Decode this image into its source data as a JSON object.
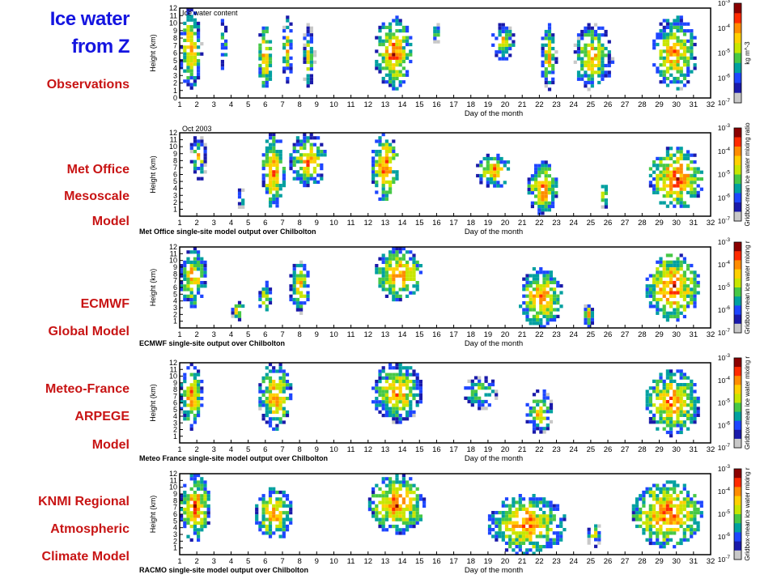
{
  "header": {
    "title_line1": "Ice water",
    "title_line2": "from Z"
  },
  "labels": {
    "obs": "Observations",
    "metoffice": [
      "Met Office",
      "Mesoscale",
      "Model"
    ],
    "ecmwf": [
      "ECMWF",
      "Global Model"
    ],
    "meteofrance": [
      "Meteo-France",
      "ARPEGE",
      "Model"
    ],
    "knmi": [
      "KNMI Regional",
      "Atmospheric",
      "Climate Model"
    ]
  },
  "colors": {
    "title": "#1515e0",
    "labels": "#c81414"
  },
  "colorbar": {
    "ticks": [
      "10^-3",
      "10^-4",
      "10^-5",
      "10^-6",
      "10^-7"
    ],
    "colors": [
      "#8b0000",
      "#ff2a00",
      "#ff8c00",
      "#ffd000",
      "#c8e600",
      "#46c846",
      "#00a0a0",
      "#1e46ff",
      "#1a1aaa",
      "#c8c8c8"
    ]
  },
  "chart_data": [
    {
      "type": "heatmap",
      "panel_title": "Ice water content",
      "title": "",
      "ylabel": "Height (km)",
      "xlabel": "Day of the month",
      "ylim": [
        0,
        12
      ],
      "xlim": [
        1,
        32
      ],
      "yticks": [
        "0",
        "1",
        "2",
        "3",
        "4",
        "5",
        "6",
        "7",
        "8",
        "9",
        "10",
        "11",
        "12"
      ],
      "xticks": [
        "1",
        "2",
        "3",
        "4",
        "5",
        "6",
        "7",
        "8",
        "9",
        "10",
        "11",
        "12",
        "13",
        "14",
        "15",
        "16",
        "17",
        "18",
        "19",
        "20",
        "21",
        "22",
        "23",
        "24",
        "25",
        "26",
        "27",
        "28",
        "29",
        "30",
        "31",
        "32"
      ],
      "colorbar_label": "kg m^-3",
      "scale": "log",
      "cloud_regions": [
        {
          "x": [
            1,
            2.3
          ],
          "y": [
            1,
            12
          ],
          "i": 0.8
        },
        {
          "x": [
            3.4,
            3.8
          ],
          "y": [
            3,
            11
          ],
          "i": 0.5
        },
        {
          "x": [
            5.6,
            6.4
          ],
          "y": [
            1,
            10
          ],
          "i": 0.9
        },
        {
          "x": [
            7,
            7.6
          ],
          "y": [
            2,
            11
          ],
          "i": 0.6
        },
        {
          "x": [
            8.2,
            8.9
          ],
          "y": [
            1,
            10
          ],
          "i": 0.5
        },
        {
          "x": [
            12.4,
            14.6
          ],
          "y": [
            1,
            11
          ],
          "i": 0.9
        },
        {
          "x": [
            15.8,
            16.2
          ],
          "y": [
            7,
            10
          ],
          "i": 0.4
        },
        {
          "x": [
            19.2,
            20.6
          ],
          "y": [
            5,
            10
          ],
          "i": 0.6
        },
        {
          "x": [
            22.1,
            23
          ],
          "y": [
            1,
            10
          ],
          "i": 0.7
        },
        {
          "x": [
            24,
            26.3
          ],
          "y": [
            1,
            10
          ],
          "i": 0.7
        },
        {
          "x": [
            28.6,
            31.2
          ],
          "y": [
            1,
            11
          ],
          "i": 0.8
        }
      ]
    },
    {
      "type": "heatmap",
      "panel_title": "Oct 2003",
      "title": "Met Office single-site model output over Chilbolton",
      "ylabel": "Height (km)",
      "xlabel": "Day of the month",
      "ylim": [
        0,
        12
      ],
      "xlim": [
        1,
        32
      ],
      "yticks": [
        "1",
        "2",
        "3",
        "4",
        "5",
        "6",
        "7",
        "8",
        "9",
        "10",
        "11",
        "12"
      ],
      "xticks": [
        "1",
        "2",
        "3",
        "4",
        "5",
        "6",
        "7",
        "8",
        "9",
        "10",
        "11",
        "12",
        "13",
        "14",
        "15",
        "16",
        "17",
        "18",
        "19",
        "20",
        "21",
        "22",
        "23",
        "24",
        "25",
        "26",
        "27",
        "28",
        "29",
        "30",
        "31",
        "32"
      ],
      "colorbar_label": "Gridbox-mean ice water mixing ratio",
      "scale": "log",
      "cloud_regions": [
        {
          "x": [
            1.6,
            2.6
          ],
          "y": [
            5,
            12
          ],
          "i": 0.5
        },
        {
          "x": [
            4.4,
            4.8
          ],
          "y": [
            1,
            4
          ],
          "i": 0.4
        },
        {
          "x": [
            5.8,
            7.2
          ],
          "y": [
            1,
            12
          ],
          "i": 0.9
        },
        {
          "x": [
            7.4,
            9.6
          ],
          "y": [
            4,
            12
          ],
          "i": 0.8
        },
        {
          "x": [
            12.2,
            13.8
          ],
          "y": [
            2,
            12
          ],
          "i": 1.0
        },
        {
          "x": [
            18.3,
            20.4
          ],
          "y": [
            4,
            9
          ],
          "i": 0.8
        },
        {
          "x": [
            21.3,
            23.1
          ],
          "y": [
            0,
            8
          ],
          "i": 0.9
        },
        {
          "x": [
            25.6,
            26
          ],
          "y": [
            1,
            5
          ],
          "i": 0.7
        },
        {
          "x": [
            28.4,
            31.6
          ],
          "y": [
            1,
            10
          ],
          "i": 1.0
        }
      ]
    },
    {
      "type": "heatmap",
      "panel_title": "",
      "title": "ECMWF single-site output over Chilbolton",
      "ylabel": "Height (km)",
      "xlabel": "Day of the month",
      "ylim": [
        0,
        12
      ],
      "xlim": [
        1,
        32
      ],
      "yticks": [
        "1",
        "2",
        "3",
        "4",
        "5",
        "6",
        "7",
        "8",
        "9",
        "10",
        "11",
        "12"
      ],
      "xticks": [
        "1",
        "2",
        "3",
        "4",
        "5",
        "6",
        "7",
        "8",
        "9",
        "10",
        "11",
        "12",
        "13",
        "14",
        "15",
        "16",
        "17",
        "18",
        "19",
        "20",
        "21",
        "22",
        "23",
        "24",
        "25",
        "26",
        "27",
        "28",
        "29",
        "30",
        "31",
        "32"
      ],
      "colorbar_label": "Gridbox-mean ice water mixing r",
      "scale": "log",
      "cloud_regions": [
        {
          "x": [
            1,
            2.6
          ],
          "y": [
            3,
            12
          ],
          "i": 0.8
        },
        {
          "x": [
            4,
            4.8
          ],
          "y": [
            1,
            4
          ],
          "i": 0.6
        },
        {
          "x": [
            5.6,
            6.4
          ],
          "y": [
            2,
            7
          ],
          "i": 0.6
        },
        {
          "x": [
            7.4,
            8.6
          ],
          "y": [
            2,
            10
          ],
          "i": 0.7
        },
        {
          "x": [
            12.4,
            15.2
          ],
          "y": [
            4,
            12
          ],
          "i": 0.9
        },
        {
          "x": [
            20.8,
            23.4
          ],
          "y": [
            0,
            9
          ],
          "i": 0.9
        },
        {
          "x": [
            24.6,
            25.2
          ],
          "y": [
            0,
            4
          ],
          "i": 0.6
        },
        {
          "x": [
            28.2,
            31.4
          ],
          "y": [
            1,
            11
          ],
          "i": 1.0
        }
      ]
    },
    {
      "type": "heatmap",
      "panel_title": "",
      "title": "Meteo France single-site model output over Chilbolton",
      "ylabel": "Height (km)",
      "xlabel": "Day of the month",
      "ylim": [
        0,
        12
      ],
      "xlim": [
        1,
        32
      ],
      "yticks": [
        "1",
        "2",
        "3",
        "4",
        "5",
        "6",
        "7",
        "8",
        "9",
        "10",
        "11",
        "12"
      ],
      "xticks": [
        "1",
        "2",
        "3",
        "4",
        "5",
        "6",
        "7",
        "8",
        "9",
        "10",
        "11",
        "12",
        "13",
        "14",
        "15",
        "16",
        "17",
        "18",
        "19",
        "20",
        "21",
        "22",
        "23",
        "24",
        "25",
        "26",
        "27",
        "28",
        "29",
        "30",
        "31",
        "32"
      ],
      "colorbar_label": "Gridbox-mean ice water mixing r",
      "scale": "log",
      "cloud_regions": [
        {
          "x": [
            1,
            2.4
          ],
          "y": [
            2,
            12
          ],
          "i": 0.8
        },
        {
          "x": [
            5.6,
            7.6
          ],
          "y": [
            2,
            12
          ],
          "i": 0.8
        },
        {
          "x": [
            12.2,
            15.2
          ],
          "y": [
            3,
            12
          ],
          "i": 0.8
        },
        {
          "x": [
            17.6,
            19.6
          ],
          "y": [
            5,
            10
          ],
          "i": 0.5
        },
        {
          "x": [
            21.2,
            22.8
          ],
          "y": [
            1,
            8
          ],
          "i": 0.6
        },
        {
          "x": [
            28.2,
            31.4
          ],
          "y": [
            1,
            11
          ],
          "i": 0.9
        }
      ]
    },
    {
      "type": "heatmap",
      "panel_title": "",
      "title": "RACMO single-site model output over Chilbolton",
      "ylabel": "Height (km)",
      "xlabel": "Day of the month",
      "ylim": [
        0,
        12
      ],
      "xlim": [
        1,
        32
      ],
      "yticks": [
        "1",
        "2",
        "3",
        "4",
        "5",
        "6",
        "7",
        "8",
        "9",
        "10",
        "11",
        "12"
      ],
      "xticks": [
        "1",
        "2",
        "3",
        "4",
        "5",
        "6",
        "7",
        "8",
        "9",
        "10",
        "11",
        "12",
        "13",
        "14",
        "15",
        "16",
        "17",
        "18",
        "19",
        "20",
        "21",
        "22",
        "23",
        "24",
        "25",
        "26",
        "27",
        "28",
        "29",
        "30",
        "31",
        "32"
      ],
      "colorbar_label": "Gridbox-mean ice water mixing r",
      "scale": "log",
      "cloud_regions": [
        {
          "x": [
            1,
            2.8
          ],
          "y": [
            2,
            12
          ],
          "i": 0.9
        },
        {
          "x": [
            5.4,
            7.6
          ],
          "y": [
            2,
            10
          ],
          "i": 0.8
        },
        {
          "x": [
            12,
            15.4
          ],
          "y": [
            3,
            12
          ],
          "i": 0.9
        },
        {
          "x": [
            19,
            23.6
          ],
          "y": [
            0,
            9
          ],
          "i": 0.9
        },
        {
          "x": [
            24.8,
            25.6
          ],
          "y": [
            1,
            5
          ],
          "i": 0.5
        },
        {
          "x": [
            27.4,
            31.6
          ],
          "y": [
            1,
            11
          ],
          "i": 1.0
        }
      ]
    }
  ]
}
